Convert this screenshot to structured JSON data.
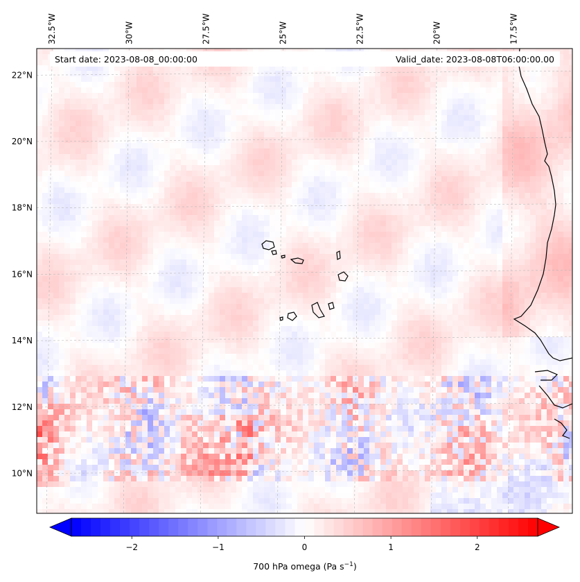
{
  "header": {
    "start_date": "Start date: 2023-08-08_00:00:00",
    "valid_date": "Valid_date: 2023-08-08T06:00:00.00"
  },
  "map": {
    "variable": "700 hPa omega",
    "lon_range": [
      -33,
      -15.6
    ],
    "lat_range": [
      8.8,
      22.8
    ],
    "lon_ticks": [
      {
        "value": -32.5,
        "label": "32.5°W"
      },
      {
        "value": -30,
        "label": "30°W"
      },
      {
        "value": -27.5,
        "label": "27.5°W"
      },
      {
        "value": -25,
        "label": "25°W"
      },
      {
        "value": -22.5,
        "label": "22.5°W"
      },
      {
        "value": -20,
        "label": "20°W"
      },
      {
        "value": -17.5,
        "label": "17.5°W"
      }
    ],
    "lat_ticks": [
      {
        "value": 22,
        "label": "22°N"
      },
      {
        "value": 20,
        "label": "20°N"
      },
      {
        "value": 18,
        "label": "18°N"
      },
      {
        "value": 16,
        "label": "16°N"
      },
      {
        "value": 14,
        "label": "14°N"
      },
      {
        "value": 12,
        "label": "12°N"
      },
      {
        "value": 10,
        "label": "10°N"
      }
    ],
    "gridlines": true,
    "features": [
      "West African coastline",
      "Cape Verde islands"
    ]
  },
  "colorbar": {
    "label_prefix": "700 hPa omega (Pa s",
    "label_exponent": "−1",
    "label_suffix": ")",
    "vmin": -2.7,
    "vmax": 2.7,
    "extend": "both",
    "colormap": "bwr",
    "colors": {
      "low": "#0000ff",
      "mid": "#ffffff",
      "high": "#ff0000"
    },
    "ticks": [
      {
        "value": -2,
        "label": "−2"
      },
      {
        "value": -1,
        "label": "−1"
      },
      {
        "value": 0,
        "label": "0"
      },
      {
        "value": 1,
        "label": "1"
      },
      {
        "value": 2,
        "label": "2"
      }
    ]
  }
}
